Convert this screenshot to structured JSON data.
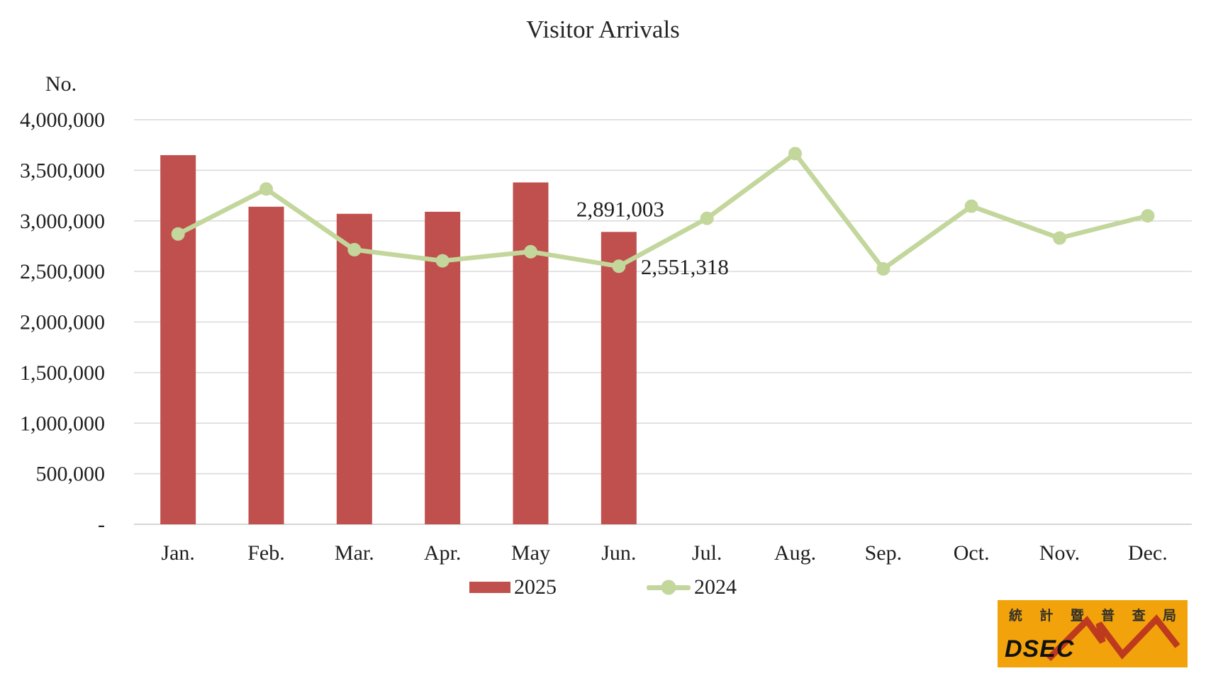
{
  "chart_data": {
    "type": "combo-bar-line",
    "title": "Visitor Arrivals",
    "ylabel": "No.",
    "categories": [
      "Jan.",
      "Feb.",
      "Mar.",
      "Apr.",
      "May",
      "Jun.",
      "Jul.",
      "Aug.",
      "Sep.",
      "Oct.",
      "Nov.",
      "Dec."
    ],
    "ylim": [
      0,
      4000000
    ],
    "ytick_interval": 500000,
    "yticks": [
      {
        "value": 4000000,
        "label": "4,000,000"
      },
      {
        "value": 3500000,
        "label": "3,500,000"
      },
      {
        "value": 3000000,
        "label": "3,000,000"
      },
      {
        "value": 2500000,
        "label": "2,500,000"
      },
      {
        "value": 2000000,
        "label": "2,000,000"
      },
      {
        "value": 1500000,
        "label": "1,500,000"
      },
      {
        "value": 1000000,
        "label": "1,000,000"
      },
      {
        "value": 500000,
        "label": "500,000"
      },
      {
        "value": 0,
        "label": "-"
      }
    ],
    "grid": "horizontal",
    "legend_position": "bottom-center",
    "series": [
      {
        "name": "2025",
        "type": "bar",
        "color": "#C0504D",
        "values": [
          3650000,
          3140000,
          3070000,
          3090000,
          3380000,
          2891003,
          null,
          null,
          null,
          null,
          null,
          null
        ]
      },
      {
        "name": "2024",
        "type": "line",
        "color": "#C3D69B",
        "values": [
          2870000,
          3315000,
          2715000,
          2605000,
          2695000,
          2551318,
          3025000,
          3665000,
          2525000,
          3145000,
          2830000,
          3050000
        ]
      }
    ],
    "annotations": [
      {
        "series": "2025",
        "category": "Jun.",
        "text": "2,891,003",
        "color": "#FF0000"
      },
      {
        "series": "2024",
        "category": "Jun.",
        "text": "2,551,318",
        "color": "#A6C36B"
      }
    ]
  },
  "colors": {
    "gridline": "#D9D9D9",
    "axis_line": "#C9C9C9",
    "text": "#1F1F1F"
  },
  "logo": {
    "chinese_characters": [
      "統",
      "計",
      "暨",
      "普",
      "查",
      "局"
    ],
    "latin": "DSEC",
    "background": "#F2A30B",
    "zigzag_color": "#BE3A1E",
    "text_color": "#33302A"
  }
}
